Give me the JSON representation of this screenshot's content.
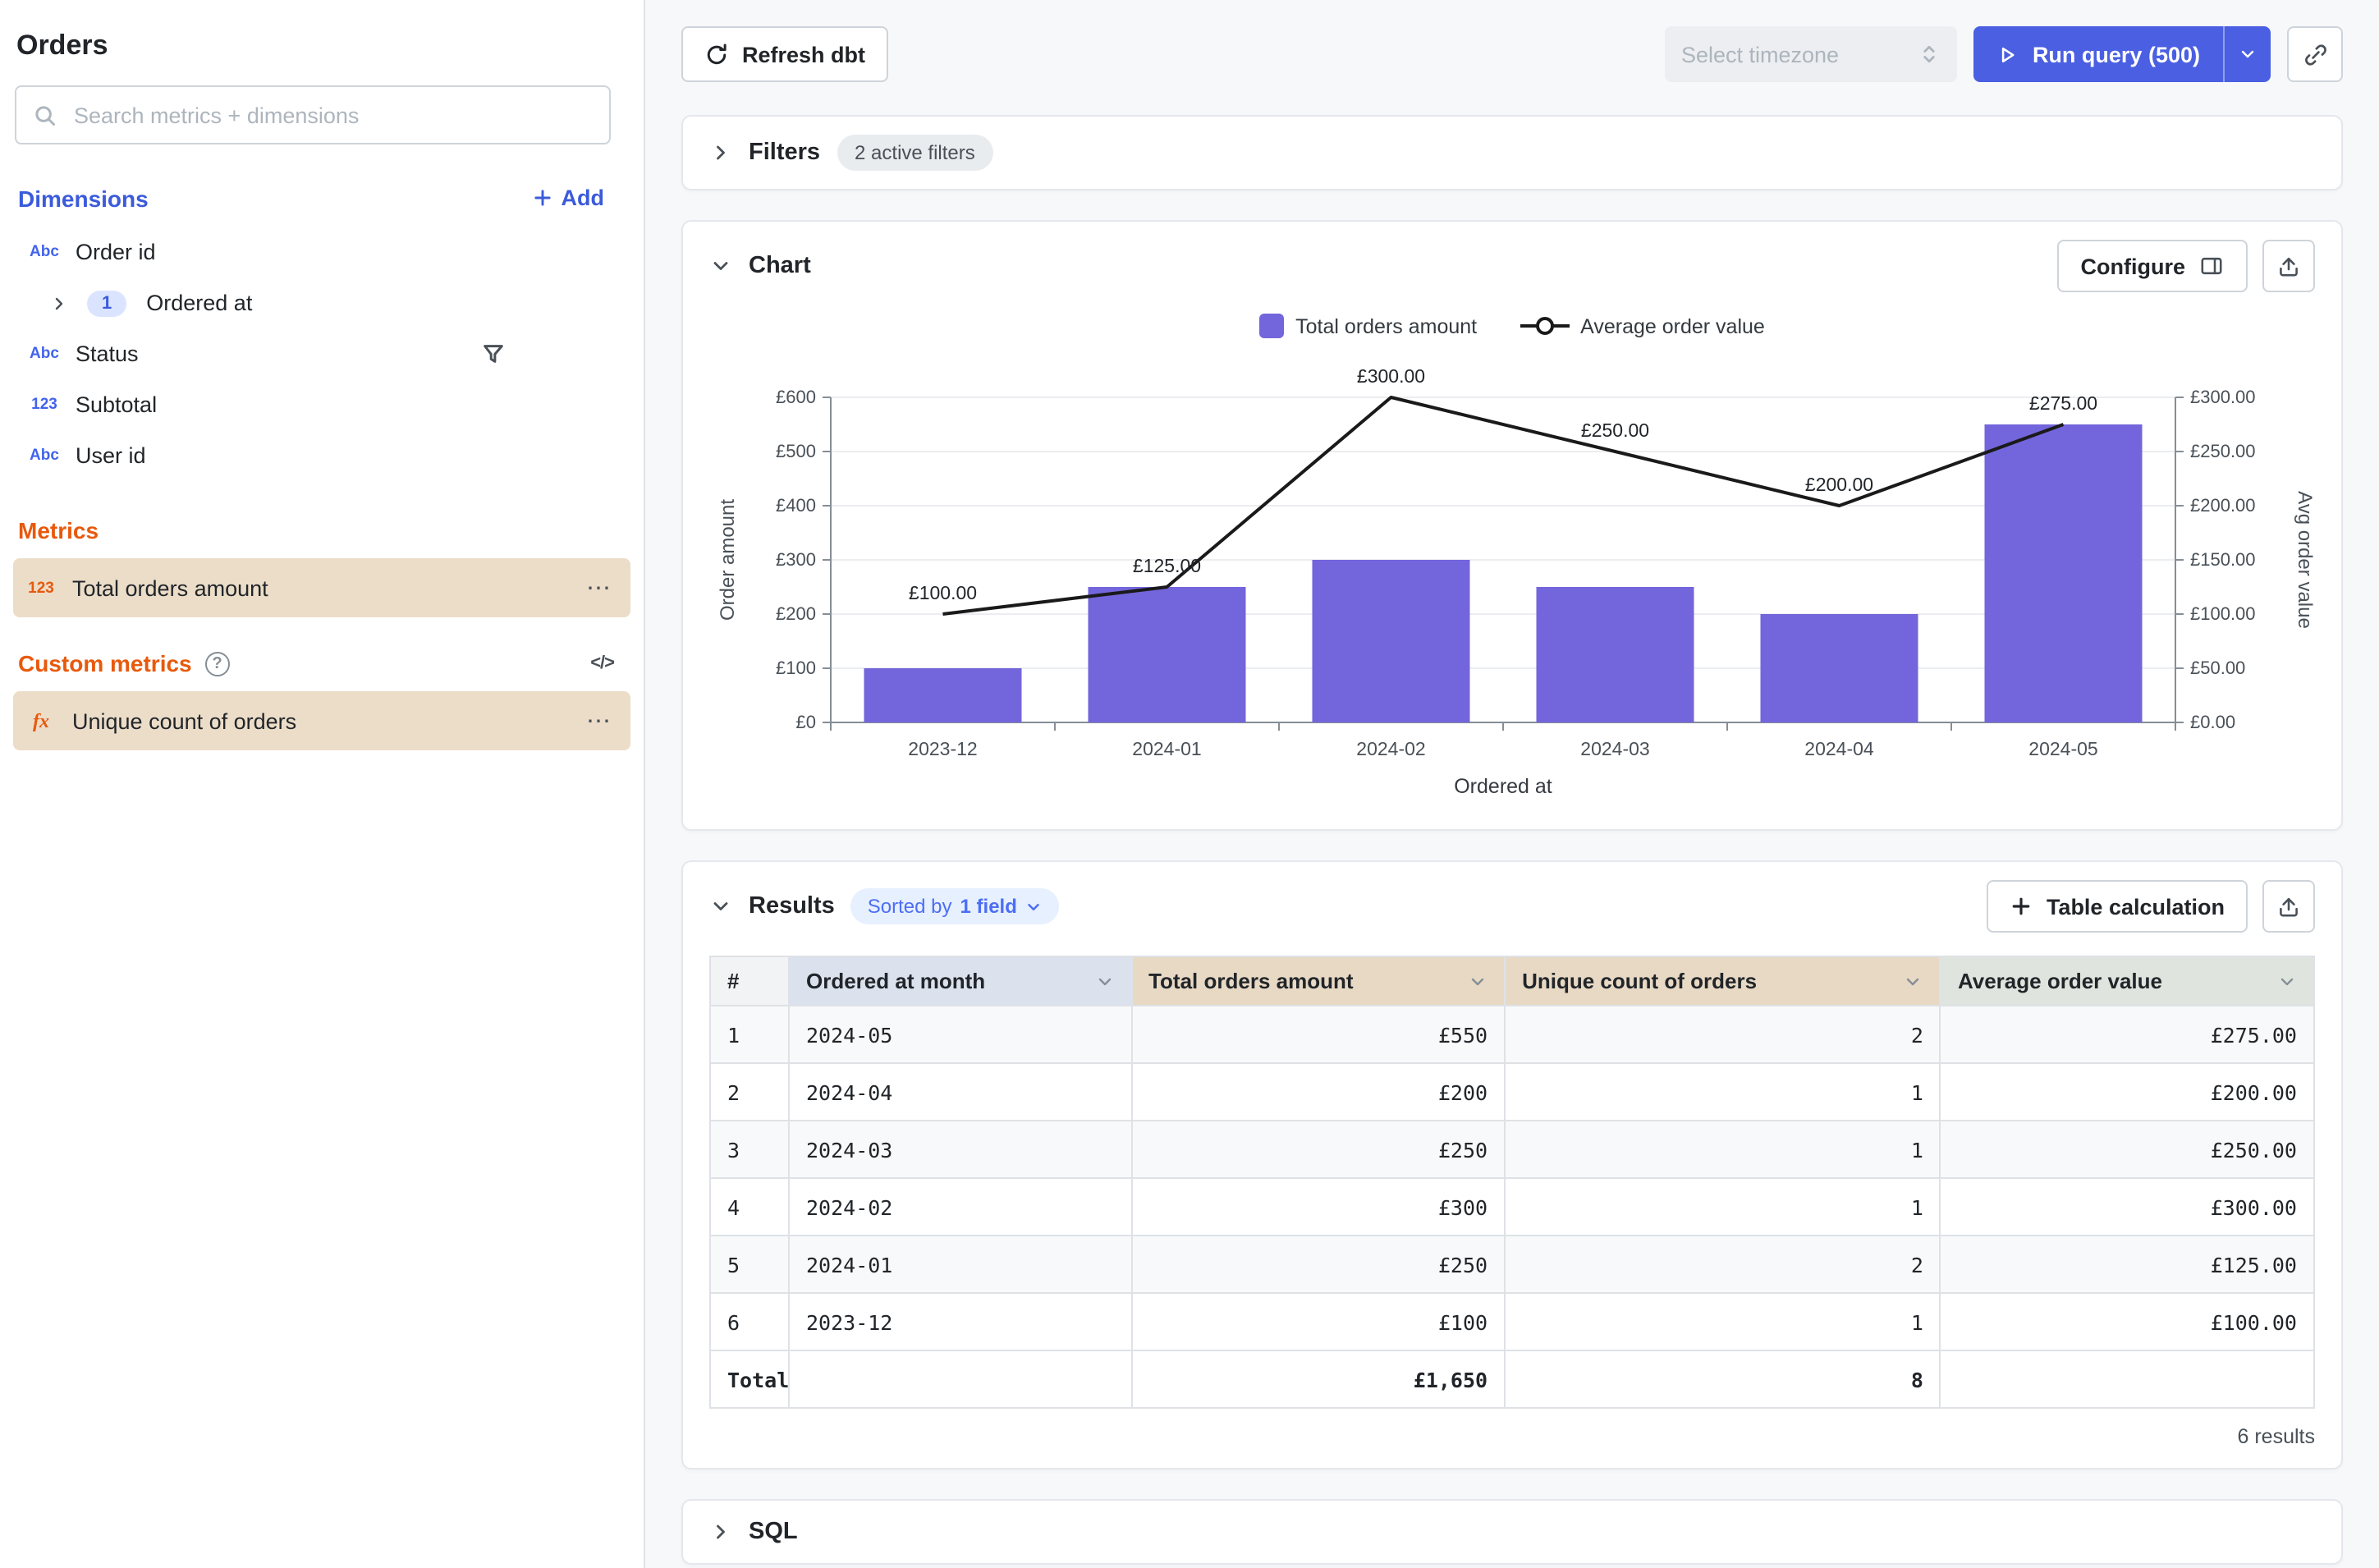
{
  "icons": {
    "abc": "Abc",
    "number": "123",
    "fx": "fx",
    "dots": "⋯",
    "help": "?",
    "code": "</>"
  },
  "colors": {
    "accent_blue": "#3b5bdb",
    "orange": "#e8590c",
    "run_button": "#4a5fe2",
    "bar": "#7365db",
    "highlight_tan": "#ecddc9"
  },
  "sidebar": {
    "title": "Orders",
    "search": {
      "placeholder": "Search metrics + dimensions"
    },
    "dimensions": {
      "heading": "Dimensions",
      "add_label": "Add",
      "items": [
        {
          "label": "Order id",
          "icon": "abc"
        },
        {
          "label": "Ordered at",
          "icon": "chevron-right",
          "badge": "1"
        },
        {
          "label": "Status",
          "icon": "abc",
          "has_filter": true
        },
        {
          "label": "Subtotal",
          "icon": "123"
        },
        {
          "label": "User id",
          "icon": "abc"
        }
      ]
    },
    "metrics": {
      "heading": "Metrics",
      "items": [
        {
          "label": "Total orders amount",
          "icon": "123"
        }
      ]
    },
    "custom_metrics": {
      "heading": "Custom metrics",
      "items": [
        {
          "label": "Unique count of orders",
          "icon": "fx"
        }
      ]
    }
  },
  "topbar": {
    "refresh_button": "Refresh dbt",
    "timezone_select": "Select timezone",
    "run_query_button": "Run query (500)"
  },
  "filters_section": {
    "title": "Filters",
    "active_badge": "2 active filters"
  },
  "chart_section": {
    "title": "Chart",
    "configure_button": "Configure",
    "legend": [
      {
        "label": "Total orders amount",
        "marker": "square",
        "color": "#7365db"
      },
      {
        "label": "Average order value",
        "marker": "line-circle",
        "color": "#1a1a1a"
      }
    ]
  },
  "chart_data": {
    "type": "bar",
    "categories": [
      "2023-12",
      "2024-01",
      "2024-02",
      "2024-03",
      "2024-04",
      "2024-05"
    ],
    "series": [
      {
        "name": "Total orders amount",
        "type": "bar",
        "axis": "left",
        "color": "#7365db",
        "values": [
          100,
          250,
          300,
          250,
          200,
          550
        ]
      },
      {
        "name": "Average order value",
        "type": "line",
        "axis": "right",
        "color": "#1a1a1a",
        "values": [
          100,
          125,
          300,
          250,
          200,
          275
        ],
        "labels": [
          "£100.00",
          "£125.00",
          "£300.00",
          "£250.00",
          "£200.00",
          "£275.00"
        ]
      }
    ],
    "xlabel": "Ordered at",
    "ylabel_left": "Order amount",
    "ylabel_right": "Avg order value",
    "ylim_left": [
      0,
      600
    ],
    "ylim_right": [
      0,
      300
    ],
    "yticks_left": [
      "£0",
      "£100",
      "£200",
      "£300",
      "£400",
      "£500",
      "£600"
    ],
    "yticks_right": [
      "£0.00",
      "£50.00",
      "£100.00",
      "£150.00",
      "£200.00",
      "£250.00",
      "£300.00"
    ],
    "grid": true,
    "legend_position": "top"
  },
  "results_section": {
    "title": "Results",
    "sorted_pill": {
      "prefix": "Sorted by",
      "field": "1 field"
    },
    "table_calc_button": "Table calculation",
    "columns": [
      "#",
      "Ordered at month",
      "Total orders amount",
      "Unique count of orders",
      "Average order value"
    ],
    "rows": [
      [
        "1",
        "2024-05",
        "£550",
        "2",
        "£275.00"
      ],
      [
        "2",
        "2024-04",
        "£200",
        "1",
        "£200.00"
      ],
      [
        "3",
        "2024-03",
        "£250",
        "1",
        "£250.00"
      ],
      [
        "4",
        "2024-02",
        "£300",
        "1",
        "£300.00"
      ],
      [
        "5",
        "2024-01",
        "£250",
        "2",
        "£125.00"
      ],
      [
        "6",
        "2023-12",
        "£100",
        "1",
        "£100.00"
      ]
    ],
    "total_row": [
      "Total",
      "",
      "£1,650",
      "8",
      ""
    ],
    "footer": "6 results"
  },
  "sql_section": {
    "title": "SQL"
  }
}
